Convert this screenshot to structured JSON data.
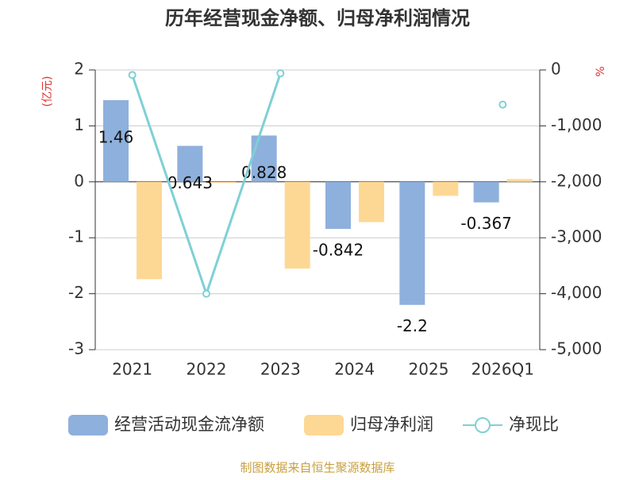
{
  "chart_data": {
    "type": "bar-line",
    "title": "历年经营现金净额、归母净利润情况",
    "y_label": "(亿元)",
    "y2_label": "%",
    "source": "制图数据来自恒生聚源数据库",
    "categories": [
      "2021",
      "2022",
      "2023",
      "2024",
      "2025",
      "2026Q1"
    ],
    "series": [
      {
        "name": "经营活动现金流净额",
        "type": "bar",
        "color": "#8eb0dc",
        "values": [
          1.46,
          0.643,
          0.828,
          -0.842,
          -2.2,
          -0.367
        ],
        "show_labels": true
      },
      {
        "name": "归母净利润",
        "type": "bar",
        "color": "#fdd894",
        "values": [
          -1.74,
          -0.02,
          -1.55,
          -0.72,
          -0.25,
          0.05
        ],
        "show_labels": false
      },
      {
        "name": "净现比",
        "type": "line",
        "axis": "y2",
        "color": "#7fd0d5",
        "values": [
          -90,
          -4000,
          -60,
          null,
          null,
          -620
        ]
      }
    ],
    "ylim": [
      -3,
      2
    ],
    "yticks": [
      -3,
      -2,
      -1,
      0,
      1,
      2
    ],
    "y2lim": [
      -5000,
      0
    ],
    "y2ticks": [
      {
        "value": -5000,
        "label": "-5,000"
      },
      {
        "value": -4000,
        "label": "-4,000"
      },
      {
        "value": -3000,
        "label": "-3,000"
      },
      {
        "value": -2000,
        "label": "-2,000"
      },
      {
        "value": -1000,
        "label": "-1,000"
      },
      0
    ],
    "grid": true,
    "legend": "bottom"
  }
}
